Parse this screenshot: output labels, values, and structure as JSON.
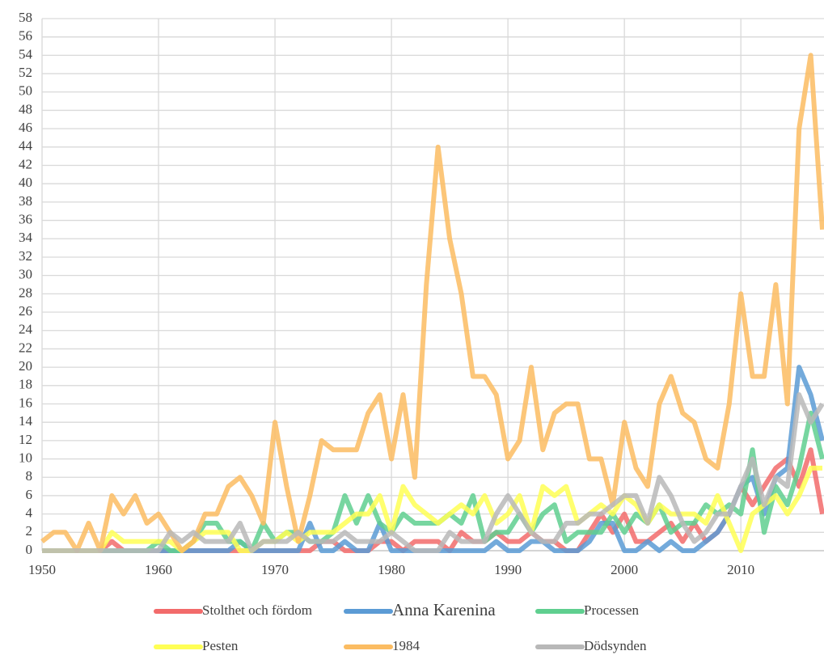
{
  "chart_data": {
    "type": "line",
    "x": [
      1950,
      1951,
      1952,
      1953,
      1954,
      1955,
      1956,
      1957,
      1958,
      1959,
      1960,
      1961,
      1962,
      1963,
      1964,
      1965,
      1966,
      1967,
      1968,
      1969,
      1970,
      1971,
      1972,
      1973,
      1974,
      1975,
      1976,
      1977,
      1978,
      1979,
      1980,
      1981,
      1982,
      1983,
      1984,
      1985,
      1986,
      1987,
      1988,
      1989,
      1990,
      1991,
      1992,
      1993,
      1994,
      1995,
      1996,
      1997,
      1998,
      1999,
      2000,
      2001,
      2002,
      2003,
      2004,
      2005,
      2006,
      2007,
      2008,
      2009,
      2010,
      2011,
      2012,
      2013,
      2014,
      2015,
      2016,
      2017
    ],
    "xlim": [
      1950,
      2017
    ],
    "xticks": [
      1950,
      1960,
      1970,
      1980,
      1990,
      2000,
      2010
    ],
    "ylim": [
      0,
      58
    ],
    "yticks": [
      0,
      2,
      4,
      6,
      8,
      10,
      12,
      14,
      16,
      18,
      20,
      22,
      24,
      26,
      28,
      30,
      32,
      34,
      36,
      38,
      40,
      42,
      44,
      46,
      48,
      50,
      52,
      54,
      56,
      58
    ],
    "grid": true,
    "legend": "bottom",
    "series": [
      {
        "name": "Stolthet och fördom",
        "color": "#f26b6b",
        "values": [
          0,
          0,
          0,
          0,
          0,
          0,
          1,
          0,
          0,
          0,
          0,
          0,
          0,
          0,
          0,
          0,
          0,
          0,
          0,
          0,
          0,
          0,
          0,
          0,
          1,
          1,
          0,
          0,
          0,
          1,
          1,
          0,
          1,
          1,
          1,
          0,
          2,
          1,
          1,
          2,
          1,
          1,
          2,
          1,
          1,
          0,
          0,
          2,
          4,
          2,
          4,
          1,
          1,
          2,
          3,
          1,
          3,
          1,
          2,
          4,
          7,
          5,
          7,
          9,
          10,
          7,
          11,
          4
        ]
      },
      {
        "name": "Anna Karenina",
        "color": "#5b9bd5",
        "values": [
          0,
          0,
          0,
          0,
          0,
          0,
          0,
          0,
          0,
          0,
          0,
          0,
          0,
          0,
          0,
          0,
          0,
          1,
          0,
          0,
          0,
          0,
          0,
          3,
          0,
          0,
          1,
          0,
          0,
          3,
          0,
          0,
          0,
          0,
          0,
          0,
          0,
          0,
          0,
          1,
          0,
          0,
          1,
          1,
          0,
          0,
          0,
          1,
          3,
          3,
          0,
          0,
          1,
          0,
          1,
          0,
          0,
          1,
          2,
          4,
          7,
          8,
          4,
          8,
          9,
          20,
          17,
          12
        ]
      },
      {
        "name": "Processen",
        "color": "#5fcf8f",
        "values": [
          0,
          0,
          0,
          0,
          0,
          0,
          0,
          0,
          0,
          0,
          1,
          0,
          0,
          1,
          3,
          3,
          1,
          1,
          0,
          3,
          1,
          2,
          2,
          1,
          1,
          2,
          6,
          3,
          6,
          3,
          2,
          4,
          3,
          3,
          3,
          4,
          3,
          6,
          1,
          2,
          2,
          4,
          2,
          4,
          5,
          1,
          2,
          2,
          2,
          4,
          2,
          4,
          3,
          5,
          2,
          3,
          3,
          5,
          4,
          5,
          4,
          11,
          2,
          7,
          5,
          9,
          15,
          10
        ]
      },
      {
        "name": "Pesten",
        "color": "#ffff55",
        "values": [
          0,
          0,
          0,
          0,
          0,
          0,
          2,
          1,
          1,
          1,
          1,
          1,
          0,
          1,
          2,
          2,
          2,
          0,
          0,
          1,
          1,
          2,
          1,
          2,
          2,
          2,
          3,
          4,
          4,
          6,
          2,
          7,
          5,
          4,
          3,
          4,
          5,
          4,
          6,
          3,
          4,
          6,
          2,
          7,
          6,
          7,
          3,
          4,
          5,
          4,
          6,
          5,
          3,
          5,
          4,
          4,
          4,
          3,
          6,
          3,
          0,
          4,
          5,
          6,
          4,
          6,
          9,
          9
        ]
      },
      {
        "name": "1984",
        "color": "#fbbc62",
        "values": [
          1,
          2,
          2,
          0,
          3,
          0,
          6,
          4,
          6,
          3,
          4,
          2,
          0,
          1,
          4,
          4,
          7,
          8,
          6,
          3,
          14,
          7,
          1,
          6,
          12,
          11,
          11,
          11,
          15,
          17,
          10,
          17,
          8,
          29,
          44,
          34,
          28,
          19,
          19,
          17,
          10,
          12,
          20,
          11,
          15,
          16,
          16,
          10,
          10,
          5,
          14,
          9,
          7,
          16,
          19,
          15,
          14,
          10,
          9,
          16,
          28,
          19,
          19,
          29,
          16,
          46,
          54,
          35
        ]
      },
      {
        "name": "Dödsynden",
        "color": "#b8b8b8",
        "values": [
          0,
          0,
          0,
          0,
          0,
          0,
          0,
          0,
          0,
          0,
          0,
          2,
          1,
          2,
          1,
          1,
          1,
          3,
          0,
          1,
          1,
          1,
          2,
          1,
          1,
          1,
          2,
          1,
          1,
          1,
          2,
          1,
          0,
          0,
          0,
          2,
          1,
          1,
          1,
          4,
          6,
          4,
          2,
          1,
          1,
          3,
          3,
          4,
          4,
          5,
          6,
          6,
          3,
          8,
          6,
          3,
          1,
          2,
          4,
          4,
          7,
          10,
          5,
          8,
          7,
          17,
          14,
          16
        ]
      }
    ]
  }
}
